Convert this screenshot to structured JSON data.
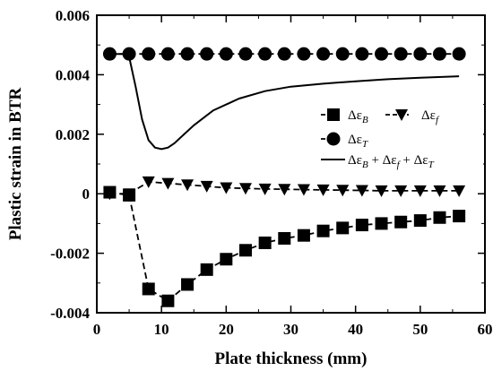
{
  "chart_data": {
    "type": "line",
    "xlabel": "Plate thickness (mm)",
    "ylabel": "Plastic strain in BTR",
    "xlim": [
      0,
      60
    ],
    "ylim": [
      -0.004,
      0.006
    ],
    "xticks": [
      0,
      10,
      20,
      30,
      40,
      50,
      60
    ],
    "xtick_labels": [
      "0",
      "10",
      "20",
      "30",
      "40",
      "50",
      "60"
    ],
    "yticks": [
      -0.004,
      -0.002,
      0,
      0.002,
      0.004,
      0.006
    ],
    "ytick_labels": [
      "-0.004",
      "-0.002",
      "0",
      "0.002",
      "0.004",
      "0.006"
    ],
    "grid": false,
    "legend_position": "right",
    "series": [
      {
        "name": "Δε_B",
        "marker": "square",
        "line": "dashed",
        "x": [
          2,
          5,
          8,
          11,
          14,
          17,
          20,
          23,
          26,
          29,
          32,
          35,
          38,
          41,
          44,
          47,
          50,
          53,
          56
        ],
        "y": [
          5e-05,
          -5e-05,
          -0.0032,
          -0.0036,
          -0.00305,
          -0.00255,
          -0.0022,
          -0.0019,
          -0.00165,
          -0.0015,
          -0.0014,
          -0.00125,
          -0.00115,
          -0.00105,
          -0.001,
          -0.00095,
          -0.0009,
          -0.0008,
          -0.00075
        ]
      },
      {
        "name": "Δε_f",
        "marker": "triangle-down",
        "line": "dashed",
        "x": [
          2,
          5,
          8,
          11,
          14,
          17,
          20,
          23,
          26,
          29,
          32,
          35,
          38,
          41,
          44,
          47,
          50,
          53,
          56
        ],
        "y": [
          0.0,
          0.0,
          0.0004,
          0.00035,
          0.0003,
          0.00025,
          0.0002,
          0.00018,
          0.00016,
          0.00015,
          0.00014,
          0.00013,
          0.00012,
          0.00011,
          0.0001,
          0.0001,
          0.0001,
          0.0001,
          0.0001
        ]
      },
      {
        "name": "Δε_T",
        "marker": "circle",
        "line": "dashed",
        "x": [
          2,
          5,
          8,
          11,
          14,
          17,
          20,
          23,
          26,
          29,
          32,
          35,
          38,
          41,
          44,
          47,
          50,
          53,
          56
        ],
        "y": [
          0.0047,
          0.0047,
          0.0047,
          0.0047,
          0.0047,
          0.0047,
          0.0047,
          0.0047,
          0.0047,
          0.0047,
          0.0047,
          0.0047,
          0.0047,
          0.0047,
          0.0047,
          0.0047,
          0.0047,
          0.0047,
          0.0047
        ]
      },
      {
        "name": "Δε_B + Δε_f + Δε_T",
        "marker": "none",
        "line": "solid",
        "x": [
          2,
          4,
          5,
          6,
          7,
          8,
          9,
          10,
          11,
          12,
          13,
          15,
          18,
          22,
          26,
          30,
          35,
          40,
          45,
          50,
          56
        ],
        "y": [
          0.0047,
          0.0047,
          0.0046,
          0.0036,
          0.0025,
          0.0018,
          0.00155,
          0.0015,
          0.00155,
          0.0017,
          0.0019,
          0.0023,
          0.0028,
          0.0032,
          0.00345,
          0.0036,
          0.0037,
          0.00378,
          0.00385,
          0.0039,
          0.00395
        ]
      }
    ],
    "legend": [
      {
        "sym": "Δε",
        "sub": "B"
      },
      {
        "sym": "Δε",
        "sub": "f"
      },
      {
        "sym": "Δε",
        "sub": "T"
      },
      {
        "sym": "Δε",
        "sub": "B",
        "plus1": "+ Δε",
        "sub2": "f",
        "plus2": "+ Δε",
        "sub3": "T"
      }
    ]
  }
}
